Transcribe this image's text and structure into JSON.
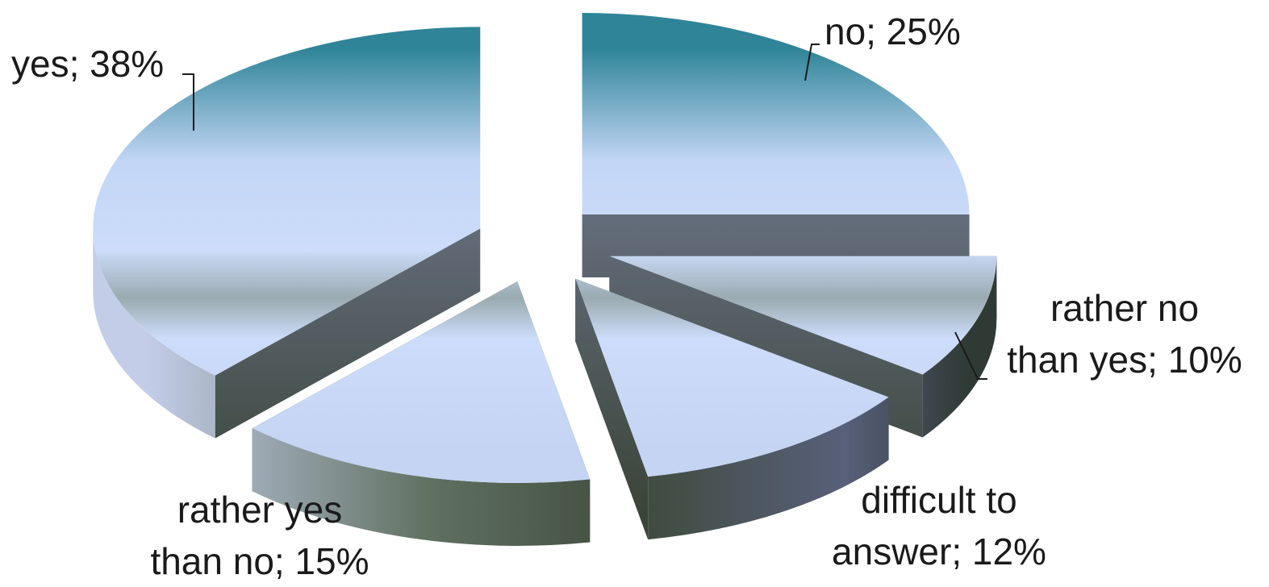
{
  "chart_data": {
    "type": "pie",
    "style": "3d-exploded",
    "unit": "%",
    "categories": [
      "yes",
      "no",
      "rather no than yes",
      "difficult to answer",
      "rather yes than no"
    ],
    "values": [
      38,
      25,
      10,
      12,
      15
    ],
    "labels": [
      {
        "lines": [
          "yes; 38%"
        ]
      },
      {
        "lines": [
          "no; 25%"
        ]
      },
      {
        "lines": [
          "rather no",
          "than yes; 10%"
        ]
      },
      {
        "lines": [
          "difficult to",
          "answer; 12%"
        ]
      },
      {
        "lines": [
          "rather yes",
          "than no; 15%"
        ]
      }
    ],
    "colors": {
      "top_edge": "#2f8498",
      "top_face": "#ccdcfa",
      "side_dark": "#3e4a3c",
      "side_light": "#b4bedf"
    },
    "legend": "none"
  }
}
